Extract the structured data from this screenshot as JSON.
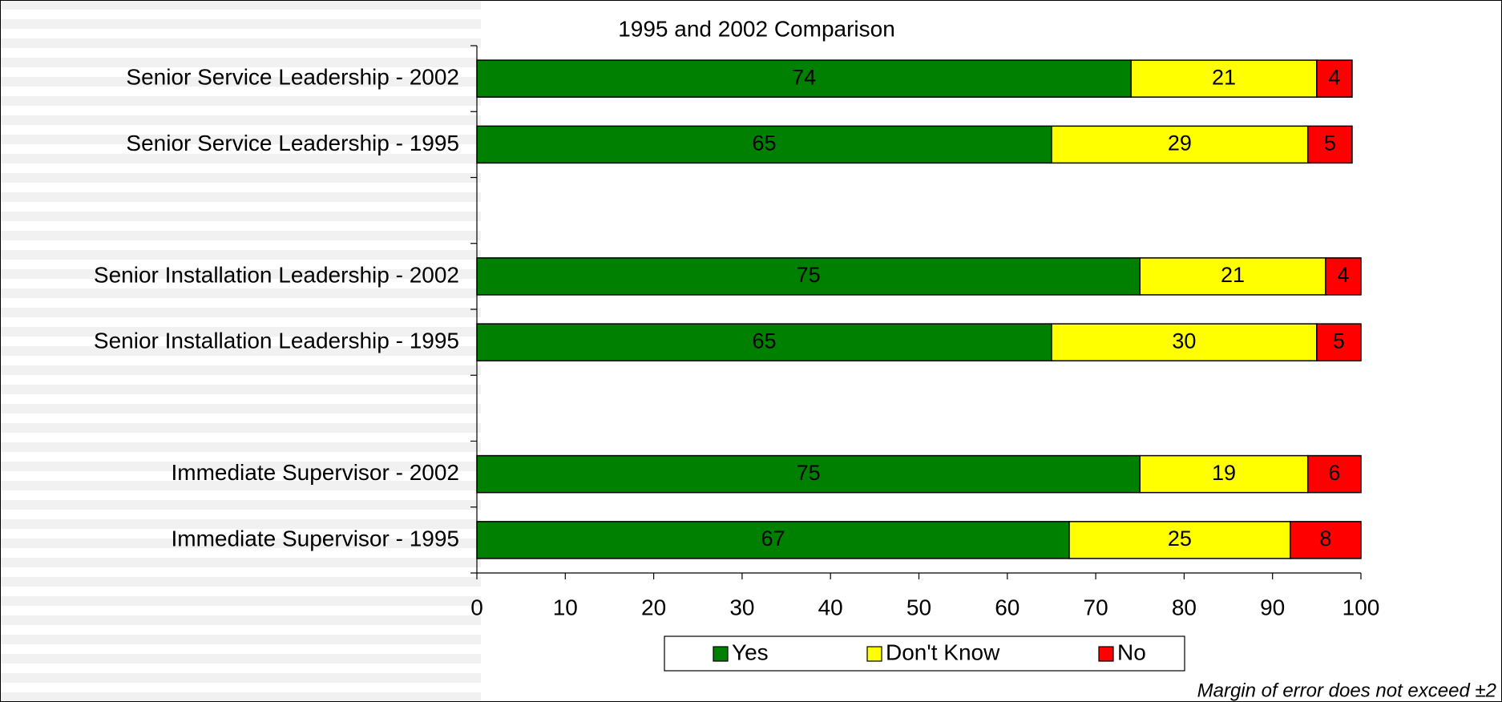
{
  "chart_data": {
    "type": "stacked_bar_horizontal",
    "title": "1995 and 2002 Comparison",
    "footnote": "Margin of error does not exceed ±2",
    "categories": [
      "Senior Service Leadership - 2002",
      "Senior Service Leadership - 1995",
      null,
      "Senior Installation Leadership  - 2002",
      "Senior Installation Leadership  - 1995",
      null,
      "Immediate Supervisor - 2002",
      "Immediate Supervisor - 1995"
    ],
    "series": [
      {
        "name": "Yes",
        "color": "#008000",
        "values": [
          74,
          65,
          null,
          75,
          65,
          null,
          75,
          67
        ]
      },
      {
        "name": "Don't Know",
        "color": "#ffff00",
        "values": [
          21,
          29,
          null,
          21,
          30,
          null,
          19,
          25
        ]
      },
      {
        "name": "No",
        "color": "#ff0000",
        "values": [
          4,
          5,
          null,
          4,
          5,
          null,
          6,
          8
        ]
      }
    ],
    "xlim": [
      0,
      100
    ],
    "xticks": [
      0,
      10,
      20,
      30,
      40,
      50,
      60,
      70,
      80,
      90,
      100
    ],
    "legend": "bottom"
  }
}
